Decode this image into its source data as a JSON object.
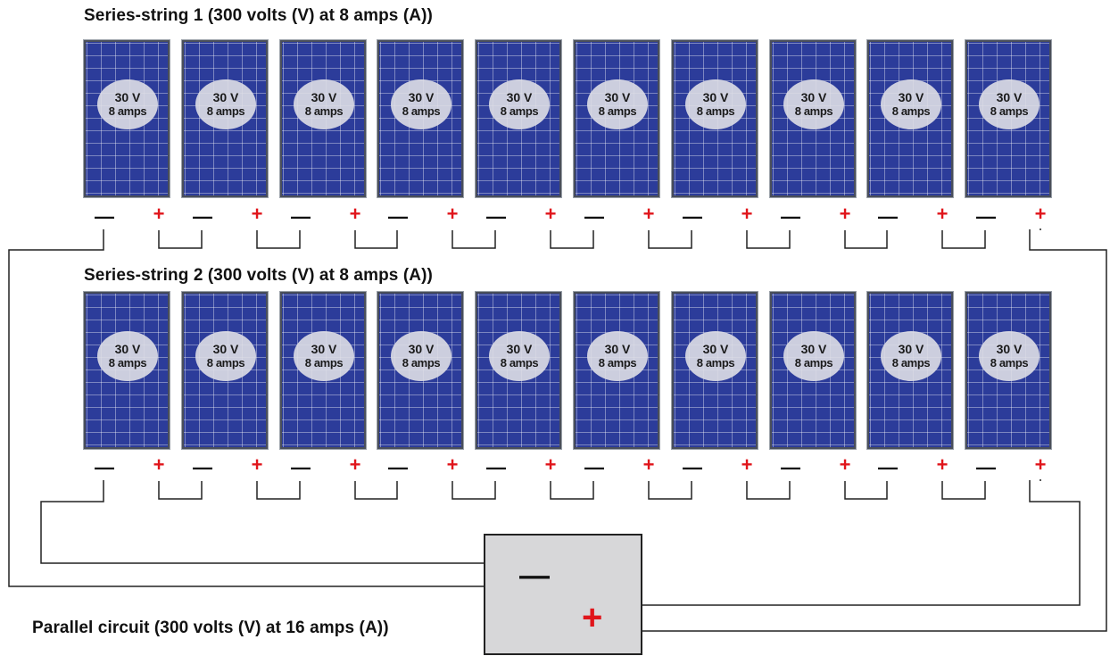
{
  "strings": [
    {
      "title": "Series-string 1 (300 volts (V) at 8 amps (A))",
      "panels": [
        {
          "voltage": "30 V",
          "current": "8 amps"
        },
        {
          "voltage": "30 V",
          "current": "8 amps"
        },
        {
          "voltage": "30 V",
          "current": "8 amps"
        },
        {
          "voltage": "30 V",
          "current": "8 amps"
        },
        {
          "voltage": "30 V",
          "current": "8 amps"
        },
        {
          "voltage": "30 V",
          "current": "8 amps"
        },
        {
          "voltage": "30 V",
          "current": "8 amps"
        },
        {
          "voltage": "30 V",
          "current": "8 amps"
        },
        {
          "voltage": "30 V",
          "current": "8 amps"
        },
        {
          "voltage": "30 V",
          "current": "8 amps"
        }
      ]
    },
    {
      "title": "Series-string 2 (300 volts (V) at 8 amps (A))",
      "panels": [
        {
          "voltage": "30 V",
          "current": "8 amps"
        },
        {
          "voltage": "30 V",
          "current": "8 amps"
        },
        {
          "voltage": "30 V",
          "current": "8 amps"
        },
        {
          "voltage": "30 V",
          "current": "8 amps"
        },
        {
          "voltage": "30 V",
          "current": "8 amps"
        },
        {
          "voltage": "30 V",
          "current": "8 amps"
        },
        {
          "voltage": "30 V",
          "current": "8 amps"
        },
        {
          "voltage": "30 V",
          "current": "8 amps"
        },
        {
          "voltage": "30 V",
          "current": "8 amps"
        },
        {
          "voltage": "30 V",
          "current": "8 amps"
        }
      ]
    }
  ],
  "terminals": {
    "negative": "—",
    "positive": "+"
  },
  "parallel": {
    "label": "Parallel circuit (300 volts (V) at 16 amps (A))",
    "negative": "—",
    "positive": "+"
  },
  "colors": {
    "panel_blue": "#2c3c9a",
    "positive_red": "#e0151b",
    "inverter_gray": "#d7d7d9"
  }
}
